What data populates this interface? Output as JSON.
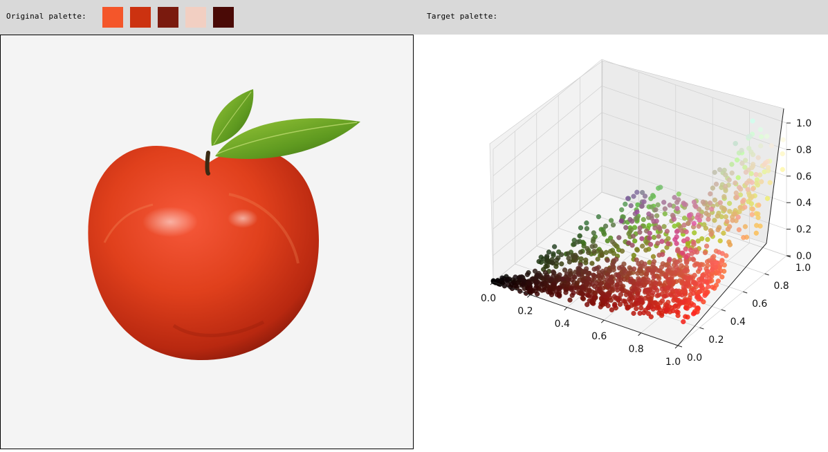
{
  "toolbar": {
    "original_label": "Original palette:",
    "target_label": "Target palette:",
    "original_swatches": [
      "#f4562a",
      "#cc3210",
      "#7a1a0e",
      "#f2cfc2",
      "#4a0a06"
    ]
  },
  "plot": {
    "x_ticks": [
      "0.0",
      "0.2",
      "0.4",
      "0.6",
      "0.8",
      "1.0"
    ],
    "y_ticks": [
      "0.0",
      "0.2",
      "0.4",
      "0.6",
      "0.8",
      "1.0"
    ],
    "z_ticks": [
      "0.0",
      "0.2",
      "0.4",
      "0.6",
      "0.8",
      "1.0"
    ]
  },
  "chart_data": {
    "type": "scatter",
    "title": "",
    "xlabel": "",
    "ylabel": "",
    "zlabel": "",
    "xlim": [
      0,
      1
    ],
    "ylim": [
      0,
      1
    ],
    "zlim": [
      0,
      1
    ],
    "grid": true,
    "description_of_data": "3D scatter of pixel colours in RGB space; points coloured by their own RGB value",
    "sample_points": [
      [
        0.05,
        0.02,
        0.02
      ],
      [
        0.1,
        0.05,
        0.04
      ],
      [
        0.2,
        0.08,
        0.06
      ],
      [
        0.3,
        0.1,
        0.08
      ],
      [
        0.4,
        0.12,
        0.1
      ],
      [
        0.5,
        0.15,
        0.1
      ],
      [
        0.6,
        0.2,
        0.12
      ],
      [
        0.7,
        0.2,
        0.15
      ],
      [
        0.8,
        0.25,
        0.15
      ],
      [
        0.9,
        0.15,
        0.1
      ],
      [
        0.95,
        0.3,
        0.2
      ],
      [
        1.0,
        0.5,
        0.3
      ],
      [
        0.4,
        0.45,
        0.2
      ],
      [
        0.5,
        0.55,
        0.3
      ],
      [
        0.6,
        0.6,
        0.4
      ],
      [
        0.8,
        0.7,
        0.5
      ],
      [
        0.9,
        0.85,
        0.7
      ],
      [
        0.95,
        0.9,
        0.85
      ],
      [
        1.0,
        1.0,
        0.9
      ],
      [
        0.7,
        0.3,
        0.6
      ]
    ]
  }
}
